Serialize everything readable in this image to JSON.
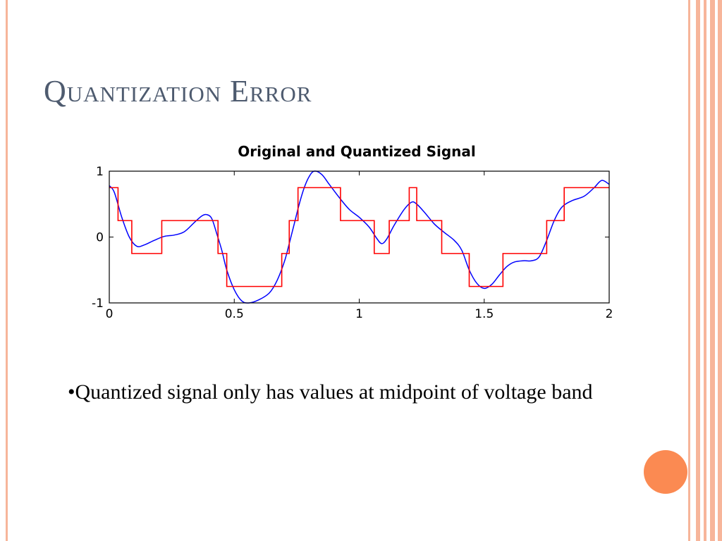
{
  "slide": {
    "title": "Quantization Error",
    "bullet": "•Quantized signal only has values at midpoint of voltage band"
  },
  "colors": {
    "frame_stripe": "#f7b59a",
    "accent": "#fb8a52",
    "original_signal": "#0000ff",
    "quantized_signal": "#ff0000"
  },
  "chart_data": {
    "type": "line",
    "title": "Original and Quantized Signal",
    "xlabel": "",
    "ylabel": "",
    "xlim": [
      0,
      2
    ],
    "ylim": [
      -1,
      1
    ],
    "xticks": [
      0,
      0.5,
      1,
      1.5,
      2
    ],
    "xtick_labels": [
      "0",
      "0.5",
      "1",
      "1.5",
      "2"
    ],
    "yticks": [
      -1,
      0,
      1
    ],
    "ytick_labels": [
      "-1",
      "0",
      "1"
    ],
    "grid": false,
    "legend": "none",
    "series": [
      {
        "kind": "smooth",
        "color": "#0000ff",
        "points": [
          [
            0,
            0.78
          ],
          [
            0.02,
            0.68
          ],
          [
            0.05,
            0.3
          ],
          [
            0.08,
            0.0
          ],
          [
            0.11,
            -0.14
          ],
          [
            0.14,
            -0.12
          ],
          [
            0.18,
            -0.05
          ],
          [
            0.22,
            0.01
          ],
          [
            0.26,
            0.03
          ],
          [
            0.3,
            0.08
          ],
          [
            0.34,
            0.22
          ],
          [
            0.37,
            0.32
          ],
          [
            0.39,
            0.34
          ],
          [
            0.41,
            0.28
          ],
          [
            0.43,
            0.05
          ],
          [
            0.45,
            -0.2
          ],
          [
            0.47,
            -0.5
          ],
          [
            0.5,
            -0.8
          ],
          [
            0.53,
            -0.97
          ],
          [
            0.56,
            -1.0
          ],
          [
            0.6,
            -0.95
          ],
          [
            0.64,
            -0.85
          ],
          [
            0.67,
            -0.67
          ],
          [
            0.7,
            -0.38
          ],
          [
            0.72,
            -0.1
          ],
          [
            0.74,
            0.2
          ],
          [
            0.76,
            0.5
          ],
          [
            0.78,
            0.75
          ],
          [
            0.8,
            0.92
          ],
          [
            0.82,
            1.0
          ],
          [
            0.85,
            0.95
          ],
          [
            0.88,
            0.8
          ],
          [
            0.92,
            0.6
          ],
          [
            0.96,
            0.42
          ],
          [
            1.0,
            0.3
          ],
          [
            1.04,
            0.15
          ],
          [
            1.07,
            -0.02
          ],
          [
            1.09,
            -0.1
          ],
          [
            1.11,
            -0.03
          ],
          [
            1.14,
            0.18
          ],
          [
            1.18,
            0.42
          ],
          [
            1.21,
            0.53
          ],
          [
            1.23,
            0.5
          ],
          [
            1.26,
            0.38
          ],
          [
            1.3,
            0.2
          ],
          [
            1.34,
            0.07
          ],
          [
            1.38,
            -0.05
          ],
          [
            1.41,
            -0.2
          ],
          [
            1.44,
            -0.5
          ],
          [
            1.47,
            -0.7
          ],
          [
            1.5,
            -0.78
          ],
          [
            1.53,
            -0.72
          ],
          [
            1.56,
            -0.58
          ],
          [
            1.59,
            -0.45
          ],
          [
            1.62,
            -0.38
          ],
          [
            1.66,
            -0.36
          ],
          [
            1.69,
            -0.36
          ],
          [
            1.72,
            -0.3
          ],
          [
            1.75,
            -0.05
          ],
          [
            1.78,
            0.25
          ],
          [
            1.81,
            0.45
          ],
          [
            1.85,
            0.55
          ],
          [
            1.9,
            0.62
          ],
          [
            1.94,
            0.75
          ],
          [
            1.97,
            0.86
          ],
          [
            2.0,
            0.8
          ]
        ]
      },
      {
        "kind": "step",
        "color": "#ff0000",
        "points": [
          [
            0,
            0.75
          ],
          [
            0.035,
            0.75
          ],
          [
            0.035,
            0.25
          ],
          [
            0.09,
            0.25
          ],
          [
            0.09,
            -0.25
          ],
          [
            0.21,
            -0.25
          ],
          [
            0.21,
            0.25
          ],
          [
            0.435,
            0.25
          ],
          [
            0.435,
            -0.25
          ],
          [
            0.47,
            -0.25
          ],
          [
            0.47,
            -0.75
          ],
          [
            0.69,
            -0.75
          ],
          [
            0.69,
            -0.25
          ],
          [
            0.72,
            -0.25
          ],
          [
            0.72,
            0.25
          ],
          [
            0.755,
            0.25
          ],
          [
            0.755,
            0.75
          ],
          [
            0.925,
            0.75
          ],
          [
            0.925,
            0.25
          ],
          [
            1.06,
            0.25
          ],
          [
            1.06,
            -0.25
          ],
          [
            1.12,
            -0.25
          ],
          [
            1.12,
            0.25
          ],
          [
            1.2,
            0.25
          ],
          [
            1.2,
            0.75
          ],
          [
            1.23,
            0.75
          ],
          [
            1.23,
            0.25
          ],
          [
            1.33,
            0.25
          ],
          [
            1.33,
            -0.25
          ],
          [
            1.44,
            -0.25
          ],
          [
            1.44,
            -0.75
          ],
          [
            1.575,
            -0.75
          ],
          [
            1.575,
            -0.25
          ],
          [
            1.75,
            -0.25
          ],
          [
            1.75,
            0.25
          ],
          [
            1.82,
            0.25
          ],
          [
            1.82,
            0.75
          ],
          [
            2.0,
            0.75
          ]
        ]
      }
    ]
  }
}
